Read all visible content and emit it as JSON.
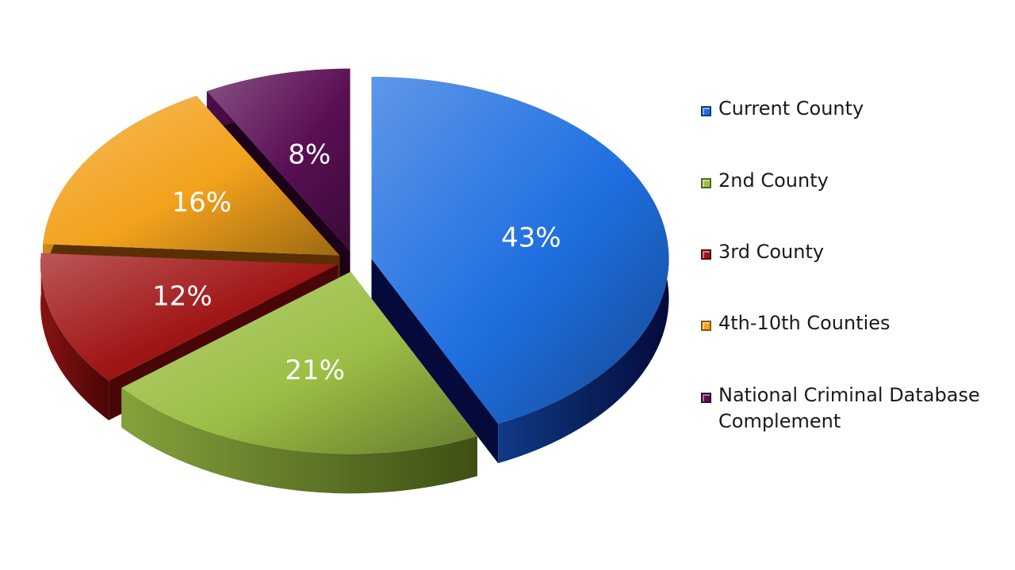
{
  "chart_data": {
    "type": "pie",
    "slices": [
      {
        "label": "Current County",
        "value": 43,
        "display": "43%",
        "color": "#1f6fe0",
        "dark": "#040a3a"
      },
      {
        "label": "2nd County",
        "value": 21,
        "display": "21%",
        "color": "#9bbf45",
        "dark": "#3e4f14"
      },
      {
        "label": "3rd County",
        "value": 12,
        "display": "12%",
        "color": "#a01616",
        "dark": "#4a0606"
      },
      {
        "label": "4th-10th Counties",
        "value": 16,
        "display": "16%",
        "color": "#f2a21c",
        "dark": "#5a2f04"
      },
      {
        "label": "National Criminal Database Complement",
        "value": 8,
        "display": "8%",
        "color": "#5a0f55",
        "dark": "#1c0118"
      }
    ],
    "legend_position": "right",
    "exploded": true,
    "style": "3d"
  }
}
